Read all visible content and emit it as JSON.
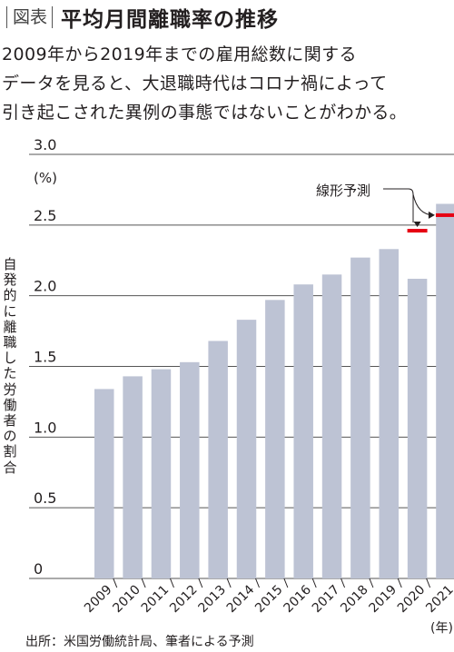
{
  "header": {
    "tag": "図表",
    "title": "平均月間離職率の推移"
  },
  "lead": {
    "lines": [
      "2009年から2019年までの雇用総数に関する",
      "データを見ると、大退職時代はコロナ禍によって",
      "引き起こされた異例の事態ではないことがわかる。"
    ]
  },
  "chart_data": {
    "type": "bar",
    "categories": [
      "2009",
      "2010",
      "2011",
      "2012",
      "2013",
      "2014",
      "2015",
      "2016",
      "2017",
      "2018",
      "2019",
      "2020",
      "2021"
    ],
    "values": [
      1.34,
      1.43,
      1.48,
      1.53,
      1.68,
      1.83,
      1.97,
      2.08,
      2.15,
      2.27,
      2.33,
      2.12,
      2.65
    ],
    "forecast": {
      "label": "線形予測",
      "points": [
        {
          "category": "2020",
          "value": 2.46
        },
        {
          "category": "2021",
          "value": 2.57
        }
      ]
    },
    "ylabel": "自発的に離職した労働者の割合",
    "unit": "(%)",
    "xunit": "(年)",
    "ylim": [
      0,
      3.0
    ],
    "yticks": [
      "3.0",
      "2.5",
      "2.0",
      "1.5",
      "1.0",
      "0.5",
      "0"
    ],
    "grid": true,
    "colors": {
      "bar": "#bdc3d4",
      "forecast": "#e60012",
      "grid": "#555555"
    }
  },
  "source": "出所：米国労働統計局、筆者による予測"
}
